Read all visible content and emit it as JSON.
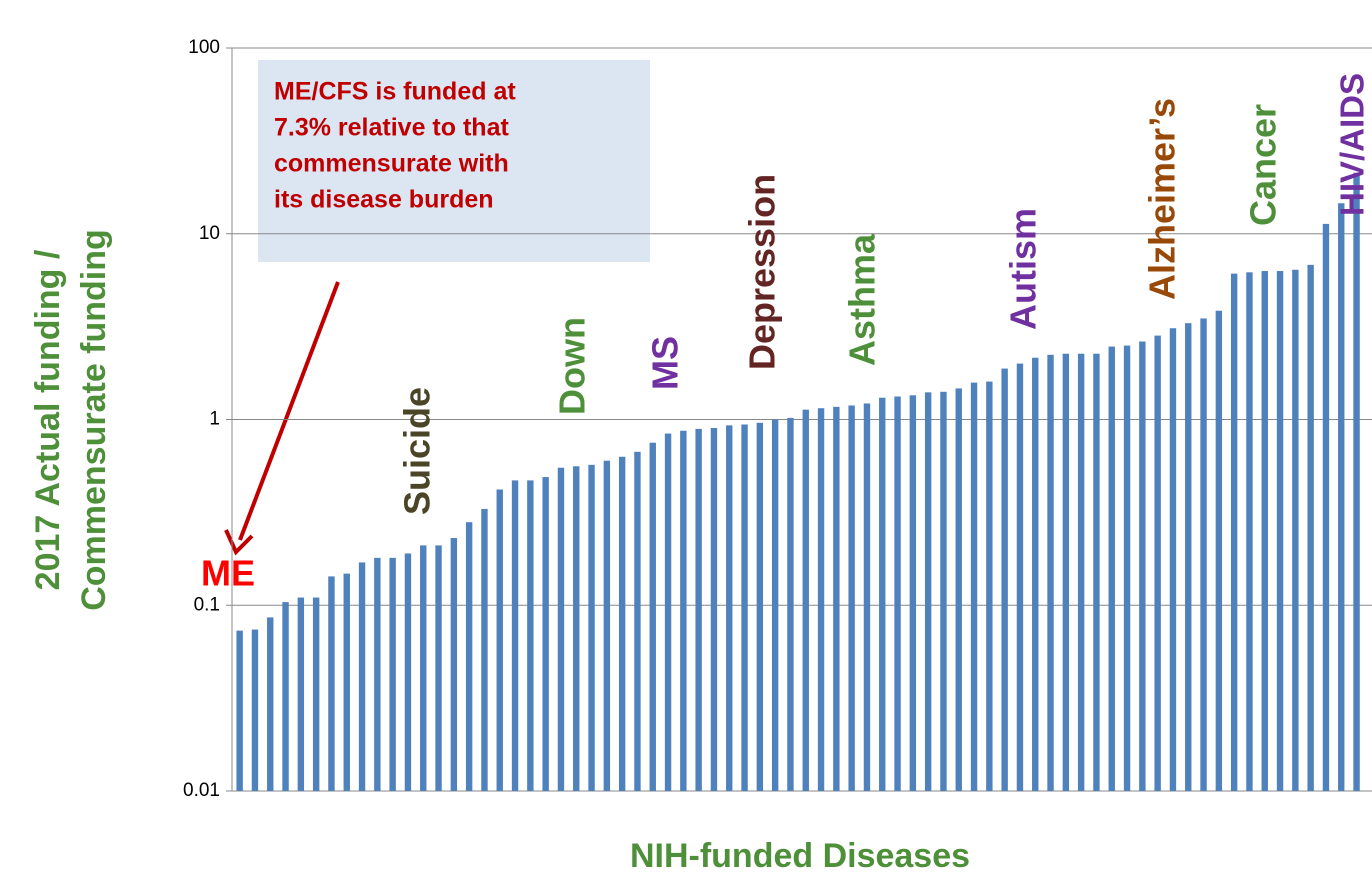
{
  "chart_data": {
    "type": "bar",
    "y_label": [
      "2017 Actual funding /",
      "Commensurate funding"
    ],
    "x_label": "NIH-funded Diseases",
    "log_scale": true,
    "grid": true,
    "color": "#4f81bd",
    "ylim": [
      0.01,
      100
    ],
    "yticks": [
      0.01,
      0.1,
      1,
      10,
      100
    ],
    "values": [
      0.073,
      0.074,
      0.086,
      0.104,
      0.11,
      0.11,
      0.143,
      0.148,
      0.17,
      0.18,
      0.18,
      0.19,
      0.21,
      0.21,
      0.23,
      0.28,
      0.33,
      0.42,
      0.47,
      0.47,
      0.49,
      0.55,
      0.56,
      0.57,
      0.6,
      0.63,
      0.67,
      0.75,
      0.84,
      0.87,
      0.89,
      0.9,
      0.93,
      0.94,
      0.96,
      1.0,
      1.02,
      1.13,
      1.15,
      1.17,
      1.19,
      1.22,
      1.31,
      1.33,
      1.35,
      1.4,
      1.41,
      1.47,
      1.58,
      1.6,
      1.88,
      2.0,
      2.15,
      2.23,
      2.26,
      2.26,
      2.26,
      2.47,
      2.5,
      2.63,
      2.83,
      3.1,
      3.3,
      3.5,
      3.85,
      6.1,
      6.2,
      6.3,
      6.3,
      6.4,
      6.8,
      11.3,
      14.6,
      21.3
    ],
    "annotations": [
      {
        "text": "ME",
        "color": "#ff0000"
      },
      {
        "text": "Suicide",
        "color": "#4a4526"
      },
      {
        "text": "Down",
        "color": "#4e8f3a"
      },
      {
        "text": "MS",
        "color": "#7030a0"
      },
      {
        "text": "Depression",
        "color": "#632523"
      },
      {
        "text": "Asthma",
        "color": "#4e8f3a"
      },
      {
        "text": "Autism",
        "color": "#7030a0"
      },
      {
        "text": "Alzheimer’s",
        "color": "#984807"
      },
      {
        "text": "Cancer",
        "color": "#4e8f3a"
      },
      {
        "text": "HIV/AIDS",
        "color": "#7030a0"
      }
    ],
    "callout": [
      "ME/CFS is funded at",
      "7.3% relative to that",
      "commensurate with",
      "its disease burden"
    ]
  }
}
